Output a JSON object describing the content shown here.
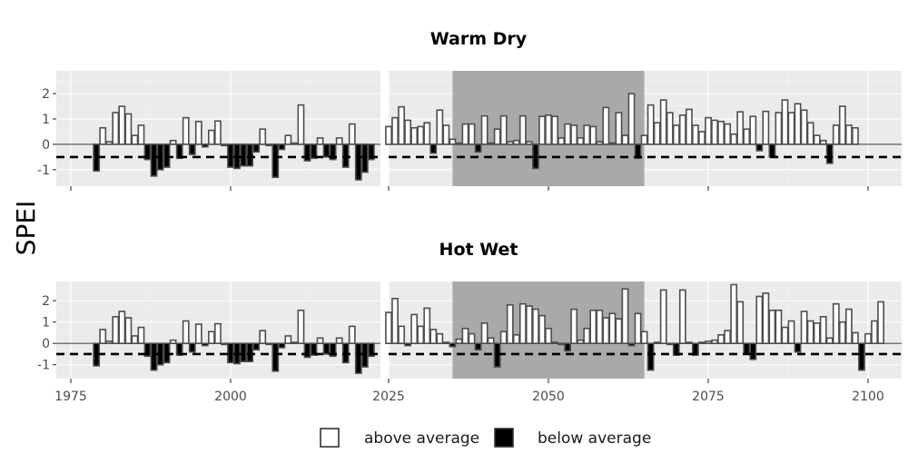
{
  "chart_data": {
    "type": "bar",
    "ylabel": "SPEI",
    "ylim": [
      -1.65,
      2.9
    ],
    "yticks": [
      -1,
      0,
      1,
      2
    ],
    "yticks_labels": [
      "-1",
      "0",
      "1",
      "2"
    ],
    "xticks": [
      1975,
      2000,
      2025,
      2050,
      2075,
      2100
    ],
    "xticks_labels": [
      "1975",
      "2000",
      "2025",
      "2050",
      "2075",
      "2100"
    ],
    "threshold": -0.5,
    "grid": true,
    "legend_position": "bottom",
    "legend": [
      {
        "label": "above average",
        "fill": "#ffffff"
      },
      {
        "label": "below average",
        "fill": "#000000"
      }
    ],
    "colors": {
      "above": "#ffffff",
      "below": "#000000",
      "outline": "#4d4d4d",
      "shade": "#a9a9a9",
      "panel": "#ebebeb"
    },
    "panels": [
      {
        "title": "Warm Dry",
        "shaded_period": [
          2035,
          2065
        ],
        "historical": {
          "x_start": 1979,
          "values": [
            -1.05,
            0.65,
            0.1,
            1.25,
            1.5,
            1.2,
            0.35,
            0.75,
            -0.6,
            -1.25,
            -1.0,
            -0.9,
            0.15,
            -0.55,
            1.05,
            -0.4,
            0.9,
            -0.1,
            0.55,
            0.92,
            -0.05,
            -0.9,
            -0.95,
            -0.85,
            -0.85,
            -0.3,
            0.6,
            -0.05,
            -1.3,
            -0.2,
            0.35,
            0.05,
            1.55,
            -0.65,
            -0.55,
            0.25,
            -0.5,
            -0.6,
            0.25,
            -0.9,
            0.8,
            -1.4,
            -1.1,
            -0.6
          ]
        },
        "projection": {
          "x_start": 2025,
          "values": [
            0.7,
            1.05,
            1.48,
            0.95,
            0.65,
            0.7,
            0.85,
            -0.35,
            1.35,
            0.75,
            0.2,
            0.05,
            0.8,
            0.8,
            -0.3,
            1.12,
            0.05,
            0.6,
            1.12,
            0.1,
            0.15,
            1.12,
            0.1,
            -0.95,
            1.1,
            1.15,
            1.1,
            0.25,
            0.8,
            0.75,
            0.25,
            0.75,
            0.7,
            0.1,
            1.45,
            0.05,
            1.25,
            0.35,
            2.0,
            -0.55,
            0.35,
            1.55,
            0.85,
            1.75,
            1.25,
            0.75,
            1.15,
            1.38,
            0.75,
            0.5,
            1.05,
            0.95,
            0.9,
            0.8,
            0.4,
            1.28,
            0.6,
            1.1,
            -0.25,
            1.3,
            -0.5,
            1.25,
            1.75,
            1.25,
            1.6,
            1.35,
            0.85,
            0.35,
            0.15,
            -0.75,
            0.75,
            1.5,
            0.75,
            0.65
          ]
        }
      },
      {
        "title": "Hot Wet",
        "shaded_period": [
          2035,
          2065
        ],
        "historical": {
          "x_start": 1979,
          "values": [
            -1.05,
            0.65,
            0.1,
            1.25,
            1.5,
            1.2,
            0.35,
            0.75,
            -0.6,
            -1.25,
            -1.0,
            -0.9,
            0.15,
            -0.55,
            1.05,
            -0.4,
            0.9,
            -0.1,
            0.55,
            0.92,
            -0.05,
            -0.9,
            -0.95,
            -0.85,
            -0.85,
            -0.3,
            0.6,
            -0.05,
            -1.3,
            -0.2,
            0.35,
            0.05,
            1.55,
            -0.65,
            -0.55,
            0.25,
            -0.5,
            -0.6,
            0.25,
            -0.9,
            0.8,
            -1.4,
            -1.1,
            -0.6
          ]
        },
        "projection": {
          "x_start": 2025,
          "values": [
            1.45,
            2.1,
            0.8,
            -0.1,
            1.35,
            0.8,
            1.65,
            0.65,
            0.45,
            0.05,
            -0.15,
            0.2,
            0.7,
            0.45,
            -0.3,
            0.95,
            0.25,
            -1.1,
            0.55,
            1.8,
            0.4,
            1.85,
            1.75,
            1.6,
            1.3,
            0.7,
            0.05,
            -0.05,
            -0.35,
            1.6,
            0.15,
            0.7,
            1.55,
            1.55,
            1.2,
            1.4,
            1.15,
            2.55,
            -0.1,
            1.4,
            0.55,
            -1.25,
            0.05,
            2.5,
            -0.05,
            -0.55,
            2.5,
            0.05,
            -0.55,
            0.05,
            0.1,
            0.15,
            0.4,
            0.6,
            2.75,
            1.95,
            -0.5,
            -0.75,
            2.2,
            2.35,
            1.55,
            1.55,
            0.75,
            1.05,
            -0.4,
            1.5,
            1.05,
            0.95,
            1.25,
            0.25,
            1.85,
            1.0,
            1.6,
            0.5,
            -1.25,
            0.45,
            1.05,
            1.95
          ]
        }
      }
    ]
  }
}
